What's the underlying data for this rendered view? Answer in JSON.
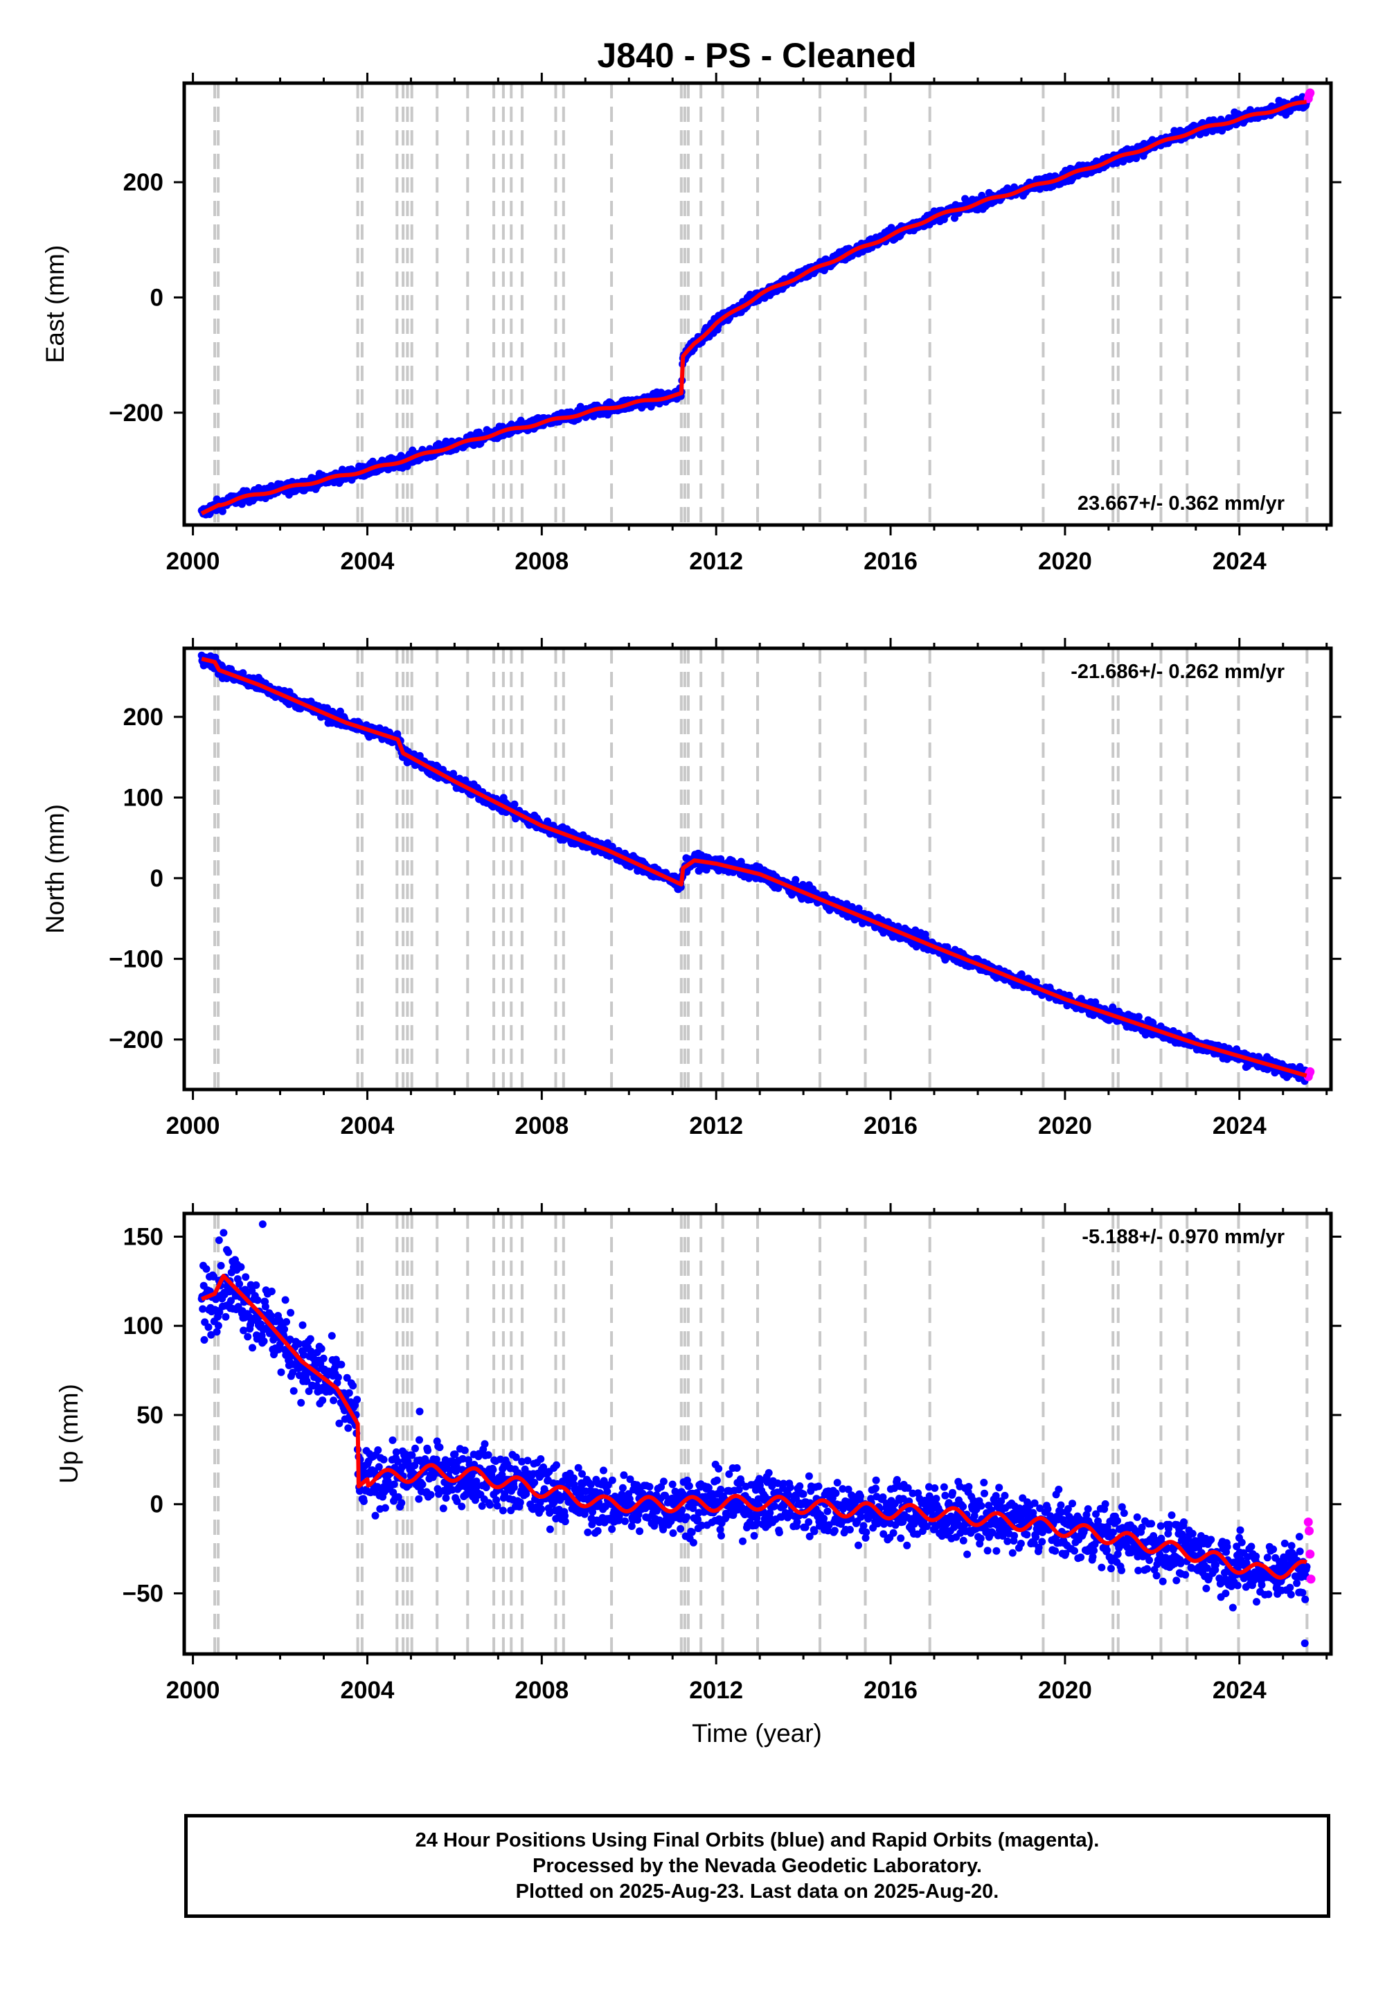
{
  "title": "J840  - PS - Cleaned",
  "xlabel": "Time (year)",
  "footer": [
    "24 Hour Positions Using Final Orbits (blue) and Rapid Orbits (magenta).",
    "Processed by the Nevada Geodetic Laboratory.",
    "Plotted on 2025-Aug-23. Last data on 2025-Aug-20."
  ],
  "colors": {
    "final": "#0000ff",
    "rapid": "#ff00ff",
    "model": "#ff0000",
    "event_line": "#c8c8c8",
    "frame": "#000000"
  },
  "chart_data": [
    {
      "type": "scatter",
      "ylabel": "East (mm)",
      "rate_label": "23.667+/- 0.362 mm/yr",
      "rate_position": "bottom-right",
      "xlim": [
        1999.8,
        2026.1
      ],
      "ylim": [
        -395,
        372
      ],
      "xticks": [
        2000,
        2004,
        2008,
        2012,
        2016,
        2020,
        2024
      ],
      "yticks": [
        -200,
        0,
        200
      ],
      "ytick_labels": [
        "−200",
        "0",
        "200"
      ],
      "event_lines": [
        2000.5,
        2000.58,
        2003.78,
        2003.88,
        2004.68,
        2004.82,
        2004.92,
        2005.02,
        2005.6,
        2006.3,
        2006.9,
        2007.12,
        2007.3,
        2007.55,
        2008.32,
        2008.5,
        2009.6,
        2011.2,
        2011.28,
        2011.36,
        2011.65,
        2012.15,
        2012.95,
        2014.38,
        2015.42,
        2016.9,
        2019.5,
        2021.1,
        2021.22,
        2022.2,
        2022.8,
        2023.98,
        2025.55
      ],
      "trend_keypoints": [
        [
          2000.2,
          -375
        ],
        [
          2000.6,
          -360
        ],
        [
          2001.0,
          -350
        ],
        [
          2003.7,
          -305
        ],
        [
          2004.5,
          -290
        ],
        [
          2007.0,
          -235
        ],
        [
          2009.3,
          -195
        ],
        [
          2011.21,
          -168
        ],
        [
          2011.23,
          -105
        ],
        [
          2011.5,
          -80
        ],
        [
          2012.0,
          -45
        ],
        [
          2013.0,
          5
        ],
        [
          2015.0,
          75
        ],
        [
          2017.0,
          140
        ],
        [
          2020.0,
          210
        ],
        [
          2023.0,
          290
        ],
        [
          2025.55,
          340
        ]
      ],
      "series": [
        {
          "name": "Final Orbits",
          "color": "#0000ff",
          "x_range": [
            2000.2,
            2025.55
          ],
          "scatter_mm": 5
        },
        {
          "name": "Rapid Orbits",
          "color": "#ff00ff",
          "points": [
            [
              2025.58,
              345
            ],
            [
              2025.6,
              352
            ],
            [
              2025.62,
              355
            ]
          ]
        },
        {
          "name": "Model",
          "color": "#ff0000"
        }
      ]
    },
    {
      "type": "scatter",
      "ylabel": "North (mm)",
      "rate_label": "-21.686+/- 0.262 mm/yr",
      "rate_position": "top-right",
      "xlim": [
        1999.8,
        2026.1
      ],
      "ylim": [
        -262,
        285
      ],
      "xticks": [
        2000,
        2004,
        2008,
        2012,
        2016,
        2020,
        2024
      ],
      "yticks": [
        -200,
        -100,
        0,
        100,
        200
      ],
      "ytick_labels": [
        "−200",
        "−100",
        "0",
        "100",
        "200"
      ],
      "event_lines": [
        2000.5,
        2000.58,
        2003.78,
        2003.88,
        2004.68,
        2004.82,
        2004.92,
        2005.02,
        2005.6,
        2006.3,
        2006.9,
        2007.12,
        2007.3,
        2007.55,
        2008.32,
        2008.5,
        2009.6,
        2011.2,
        2011.28,
        2011.36,
        2011.65,
        2012.15,
        2012.95,
        2014.38,
        2015.42,
        2016.9,
        2019.5,
        2021.1,
        2021.22,
        2022.2,
        2022.8,
        2023.98,
        2025.55
      ],
      "trend_keypoints": [
        [
          2000.2,
          272
        ],
        [
          2000.5,
          268
        ],
        [
          2000.6,
          258
        ],
        [
          2001.5,
          240
        ],
        [
          2003.5,
          193
        ],
        [
          2004.7,
          172
        ],
        [
          2004.82,
          155
        ],
        [
          2006.0,
          120
        ],
        [
          2008.0,
          65
        ],
        [
          2009.5,
          35
        ],
        [
          2011.21,
          -8
        ],
        [
          2011.23,
          12
        ],
        [
          2011.5,
          22
        ],
        [
          2012.0,
          18
        ],
        [
          2013.0,
          5
        ],
        [
          2015.0,
          -40
        ],
        [
          2017.0,
          -85
        ],
        [
          2020.0,
          -150
        ],
        [
          2023.0,
          -205
        ],
        [
          2025.55,
          -245
        ]
      ],
      "series": [
        {
          "name": "Final Orbits",
          "color": "#0000ff",
          "x_range": [
            2000.2,
            2025.55
          ],
          "scatter_mm": 4
        },
        {
          "name": "Rapid Orbits",
          "color": "#ff00ff",
          "points": [
            [
              2025.58,
              -246
            ],
            [
              2025.6,
              -242
            ],
            [
              2025.62,
              -240
            ]
          ]
        },
        {
          "name": "Model",
          "color": "#ff0000"
        }
      ]
    },
    {
      "type": "scatter",
      "ylabel": "Up (mm)",
      "rate_label": "-5.188+/- 0.970 mm/yr",
      "rate_position": "top-right",
      "xlim": [
        1999.8,
        2026.1
      ],
      "ylim": [
        -84,
        163
      ],
      "xticks": [
        2000,
        2004,
        2008,
        2012,
        2016,
        2020,
        2024
      ],
      "yticks": [
        -50,
        0,
        50,
        100,
        150
      ],
      "ytick_labels": [
        "−50",
        "0",
        "50",
        "100",
        "150"
      ],
      "event_lines": [
        2000.5,
        2000.58,
        2003.78,
        2003.88,
        2004.68,
        2004.82,
        2004.92,
        2005.02,
        2005.6,
        2006.3,
        2006.9,
        2007.12,
        2007.3,
        2007.55,
        2008.32,
        2008.5,
        2009.6,
        2011.2,
        2011.28,
        2011.36,
        2011.65,
        2012.15,
        2012.95,
        2014.38,
        2015.42,
        2016.9,
        2019.5,
        2021.1,
        2021.22,
        2022.2,
        2022.8,
        2023.98,
        2025.55
      ],
      "trend_keypoints": [
        [
          2000.2,
          115
        ],
        [
          2000.5,
          118
        ],
        [
          2000.7,
          128
        ],
        [
          2001.5,
          108
        ],
        [
          2002.5,
          80
        ],
        [
          2003.3,
          65
        ],
        [
          2003.78,
          45
        ],
        [
          2003.8,
          10
        ],
        [
          2004.0,
          14
        ],
        [
          2005.5,
          18
        ],
        [
          2006.5,
          16
        ],
        [
          2008.0,
          8
        ],
        [
          2009.5,
          0
        ],
        [
          2011.5,
          0
        ],
        [
          2013.0,
          1
        ],
        [
          2015.0,
          -3
        ],
        [
          2017.0,
          -5
        ],
        [
          2019.5,
          -12
        ],
        [
          2021.0,
          -18
        ],
        [
          2023.0,
          -28
        ],
        [
          2024.5,
          -38
        ],
        [
          2025.55,
          -36
        ]
      ],
      "series": [
        {
          "name": "Final Orbits",
          "color": "#0000ff",
          "x_range": [
            2000.2,
            2025.55
          ],
          "scatter_mm": 8
        },
        {
          "name": "Rapid Orbits",
          "color": "#ff00ff",
          "points": [
            [
              2025.58,
              -10
            ],
            [
              2025.6,
              -15
            ],
            [
              2025.62,
              -28
            ],
            [
              2025.64,
              -42
            ]
          ]
        },
        {
          "name": "Model",
          "color": "#ff0000"
        }
      ]
    }
  ]
}
